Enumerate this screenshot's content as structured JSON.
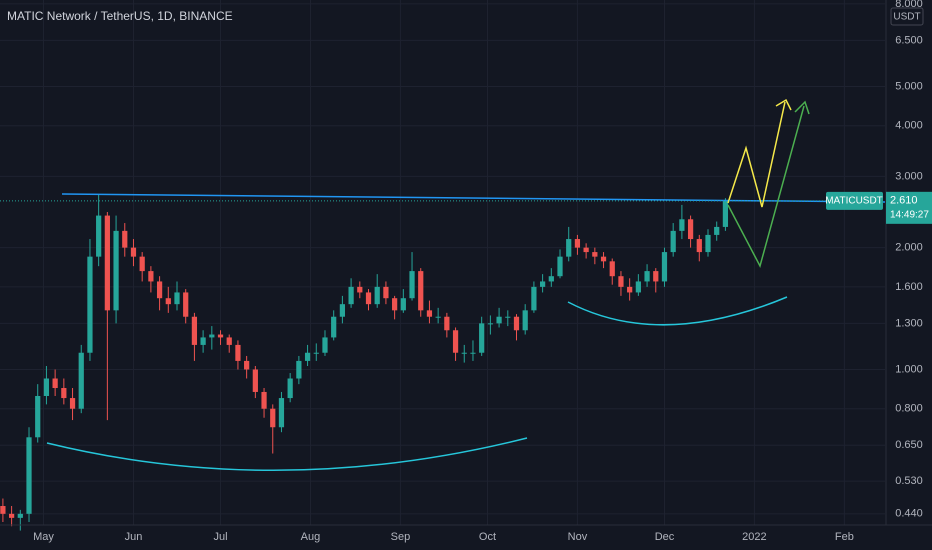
{
  "chart_data": {
    "type": "candlestick",
    "title": "MATIC Network / TetherUS, 1D, BINANCE",
    "currency": "USDT",
    "log_scale": true,
    "grid": true,
    "up_color": "#26a69a",
    "down_color": "#ef5350",
    "x": [
      -14,
      -11,
      -8,
      -5,
      -2,
      1,
      4,
      7,
      10,
      13,
      16,
      19,
      22,
      25,
      28,
      31,
      34,
      37,
      40,
      43,
      46,
      49,
      52,
      55,
      58,
      61,
      64,
      67,
      70,
      73,
      76,
      79,
      82,
      85,
      88,
      91,
      94,
      97,
      100,
      103,
      106,
      109,
      112,
      115,
      118,
      121,
      124,
      127,
      130,
      133,
      136,
      139,
      142,
      145,
      148,
      151,
      154,
      157,
      160,
      163,
      166,
      169,
      172,
      175,
      178,
      181,
      184,
      187,
      190,
      193,
      196,
      199,
      202,
      205,
      208,
      211,
      214,
      217,
      220,
      223,
      226,
      229,
      232,
      235
    ],
    "open": [
      0.46,
      0.44,
      0.43,
      0.44,
      0.68,
      0.86,
      0.95,
      0.9,
      0.85,
      0.8,
      1.1,
      1.9,
      2.4,
      1.4,
      2.2,
      2.0,
      1.9,
      1.75,
      1.65,
      1.5,
      1.45,
      1.55,
      1.35,
      1.15,
      1.2,
      1.22,
      1.2,
      1.15,
      1.05,
      1.0,
      0.88,
      0.8,
      0.72,
      0.85,
      0.95,
      1.05,
      1.1,
      1.1,
      1.2,
      1.35,
      1.45,
      1.6,
      1.55,
      1.45,
      1.6,
      1.5,
      1.4,
      1.5,
      1.75,
      1.4,
      1.35,
      1.35,
      1.25,
      1.1,
      1.1,
      1.1,
      1.3,
      1.3,
      1.35,
      1.35,
      1.25,
      1.4,
      1.6,
      1.65,
      1.7,
      1.9,
      2.1,
      2.0,
      1.95,
      1.9,
      1.85,
      1.7,
      1.6,
      1.55,
      1.65,
      1.75,
      1.65,
      1.95,
      2.2,
      2.35,
      2.1,
      1.95,
      2.15,
      2.25
    ],
    "high": [
      0.48,
      0.46,
      0.45,
      0.72,
      0.92,
      1.02,
      1.0,
      0.95,
      0.9,
      1.15,
      2.1,
      2.7,
      2.45,
      2.4,
      2.3,
      2.1,
      1.95,
      1.8,
      1.7,
      1.6,
      1.65,
      1.58,
      1.38,
      1.25,
      1.28,
      1.25,
      1.22,
      1.18,
      1.08,
      1.02,
      0.9,
      0.82,
      0.88,
      0.98,
      1.08,
      1.15,
      1.16,
      1.25,
      1.4,
      1.52,
      1.68,
      1.65,
      1.58,
      1.72,
      1.65,
      1.52,
      1.58,
      1.95,
      1.78,
      1.48,
      1.42,
      1.38,
      1.27,
      1.15,
      1.18,
      1.35,
      1.36,
      1.42,
      1.4,
      1.37,
      1.45,
      1.65,
      1.72,
      1.78,
      1.98,
      2.25,
      2.15,
      2.05,
      2.0,
      1.95,
      1.88,
      1.75,
      1.68,
      1.72,
      1.82,
      1.78,
      2.0,
      2.3,
      2.55,
      2.4,
      2.15,
      2.22,
      2.32,
      2.65
    ],
    "low": [
      0.42,
      0.41,
      0.4,
      0.42,
      0.66,
      0.82,
      0.86,
      0.82,
      0.75,
      0.78,
      1.05,
      1.8,
      0.75,
      1.3,
      1.9,
      1.8,
      1.65,
      1.55,
      1.4,
      1.38,
      1.4,
      1.3,
      1.05,
      1.1,
      1.12,
      1.15,
      1.1,
      1.0,
      0.95,
      0.85,
      0.76,
      0.62,
      0.7,
      0.83,
      0.92,
      1.02,
      1.05,
      1.08,
      1.18,
      1.3,
      1.42,
      1.5,
      1.4,
      1.42,
      1.45,
      1.33,
      1.38,
      1.48,
      1.35,
      1.3,
      1.3,
      1.2,
      1.05,
      1.04,
      1.05,
      1.08,
      1.22,
      1.27,
      1.28,
      1.18,
      1.22,
      1.38,
      1.55,
      1.6,
      1.68,
      1.85,
      1.92,
      1.88,
      1.82,
      1.78,
      1.62,
      1.52,
      1.48,
      1.52,
      1.6,
      1.55,
      1.6,
      1.9,
      2.1,
      2.0,
      1.85,
      1.9,
      2.08,
      2.2
    ],
    "close": [
      0.44,
      0.43,
      0.44,
      0.68,
      0.86,
      0.95,
      0.9,
      0.85,
      0.8,
      1.1,
      1.9,
      2.4,
      1.4,
      2.2,
      2.0,
      1.9,
      1.75,
      1.65,
      1.5,
      1.45,
      1.55,
      1.35,
      1.15,
      1.2,
      1.22,
      1.2,
      1.15,
      1.05,
      1.0,
      0.88,
      0.8,
      0.72,
      0.85,
      0.95,
      1.05,
      1.1,
      1.1,
      1.2,
      1.35,
      1.45,
      1.6,
      1.55,
      1.45,
      1.6,
      1.5,
      1.4,
      1.5,
      1.75,
      1.4,
      1.35,
      1.35,
      1.25,
      1.1,
      1.1,
      1.1,
      1.3,
      1.3,
      1.35,
      1.35,
      1.25,
      1.4,
      1.6,
      1.65,
      1.7,
      1.9,
      2.1,
      2.0,
      1.95,
      1.9,
      1.85,
      1.7,
      1.6,
      1.55,
      1.65,
      1.75,
      1.65,
      1.95,
      2.2,
      2.35,
      2.1,
      1.95,
      2.15,
      2.25,
      2.61
    ],
    "xlim": [
      -15,
      290
    ],
    "xticks": [
      {
        "value": 0,
        "label": "May"
      },
      {
        "value": 31,
        "label": "Jun"
      },
      {
        "value": 61,
        "label": "Jul"
      },
      {
        "value": 92,
        "label": "Aug"
      },
      {
        "value": 123,
        "label": "Sep"
      },
      {
        "value": 153,
        "label": "Oct"
      },
      {
        "value": 184,
        "label": "Nov"
      },
      {
        "value": 214,
        "label": "Dec"
      },
      {
        "value": 245,
        "label": "2022"
      },
      {
        "value": 276,
        "label": "Feb"
      }
    ],
    "ylim": [
      0.42,
      8.18
    ],
    "yticks": [
      {
        "value": 0.44,
        "label": "0.440"
      },
      {
        "value": 0.53,
        "label": "0.530"
      },
      {
        "value": 0.65,
        "label": "0.650"
      },
      {
        "value": 0.8,
        "label": "0.800"
      },
      {
        "value": 1,
        "label": "1.000"
      },
      {
        "value": 1.3,
        "label": "1.300"
      },
      {
        "value": 1.6,
        "label": "1.600"
      },
      {
        "value": 2,
        "label": "2.000"
      },
      {
        "value": 3,
        "label": "3.000"
      },
      {
        "value": 4,
        "label": "4.000"
      },
      {
        "value": 5,
        "label": "5.000"
      },
      {
        "value": 6.5,
        "label": "6.500"
      },
      {
        "value": 8,
        "label": "8.000"
      }
    ],
    "price_tag": {
      "symbol": "MATICUSDT",
      "value": 2.61,
      "label": "2.610",
      "countdown": "14:49:27"
    }
  }
}
